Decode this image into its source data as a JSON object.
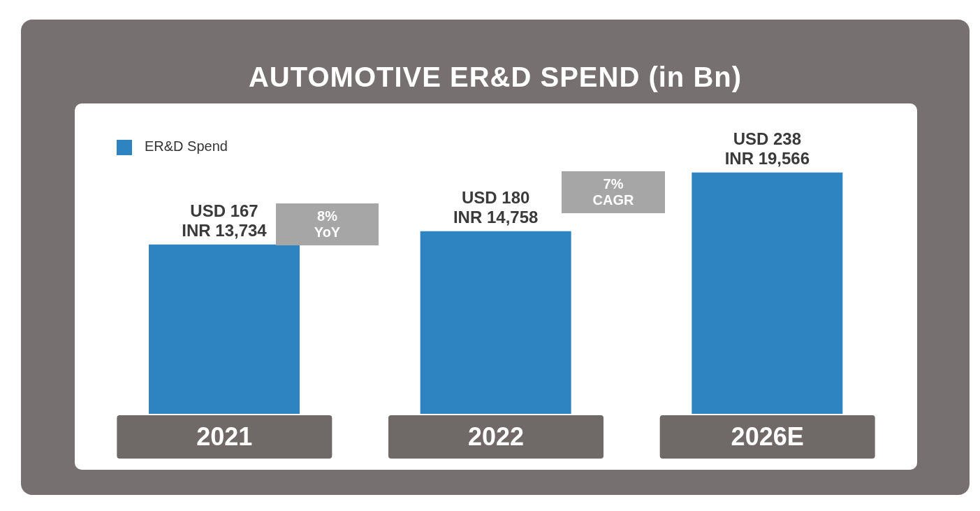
{
  "chart_data": {
    "type": "bar",
    "title": "AUTOMOTIVE ER&D SPEND (in Bn)",
    "categories": [
      "2021",
      "2022",
      "2026E"
    ],
    "series": [
      {
        "name": "ER&D Spend",
        "color": "#2e84c0",
        "values": [
          167,
          180,
          238
        ],
        "value_labels": [
          "USD 167\nINR 13,734",
          "USD 180\nINR 14,758",
          "USD 238\nINR 19,566"
        ]
      }
    ],
    "annotations": [
      "8%\nYoY",
      "7%\nCAGR"
    ],
    "legend": "top left",
    "grid": false
  }
}
